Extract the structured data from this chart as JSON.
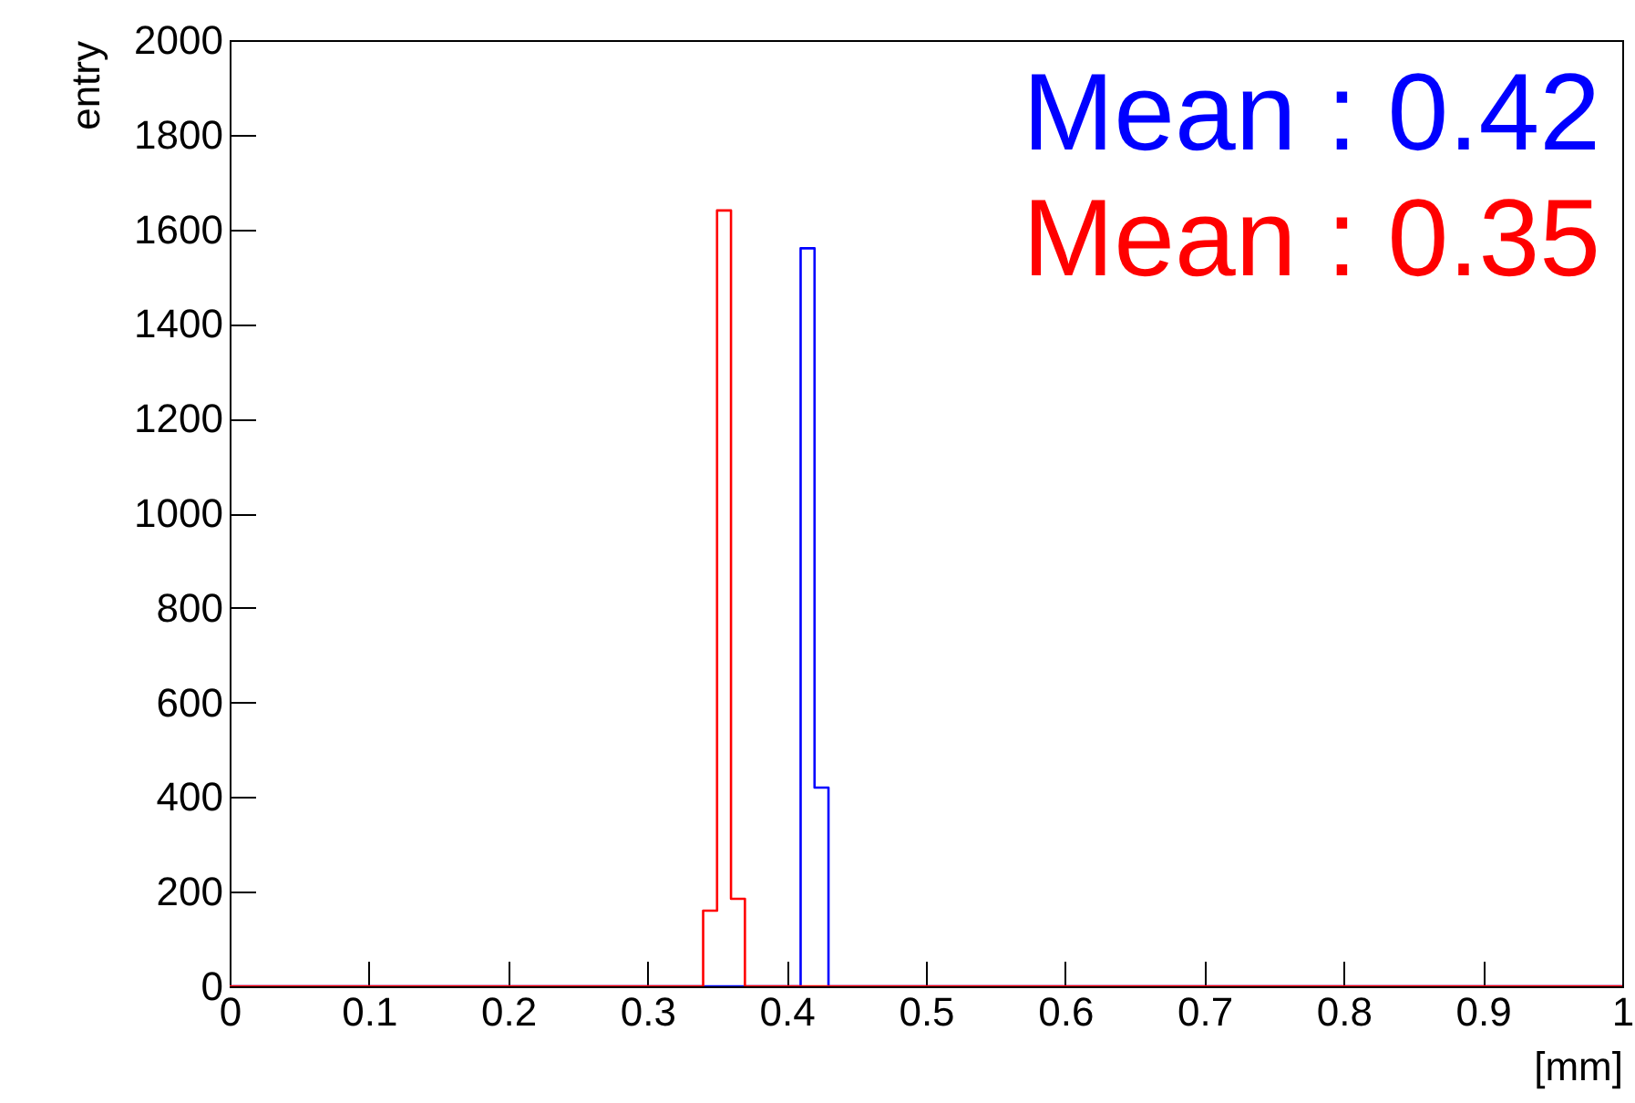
{
  "chart_data": {
    "type": "histogram",
    "xlabel": "[mm]",
    "ylabel": "entry",
    "bins": [
      0,
      0.01,
      0.02,
      0.03,
      0.04,
      0.05,
      0.06,
      0.07,
      0.08,
      0.09,
      0.1,
      0.11,
      0.12,
      0.13,
      0.14,
      0.15,
      0.16,
      0.17,
      0.18,
      0.19,
      0.2,
      0.21,
      0.22,
      0.23,
      0.24,
      0.25,
      0.26,
      0.27,
      0.28,
      0.29,
      0.3,
      0.31,
      0.32,
      0.33,
      0.34,
      0.35,
      0.36,
      0.37,
      0.38,
      0.39,
      0.4,
      0.41,
      0.42,
      0.43,
      0.44,
      0.45,
      0.46,
      0.47,
      0.48,
      0.49,
      0.5,
      0.51,
      0.52,
      0.53,
      0.54,
      0.55,
      0.56,
      0.57,
      0.58,
      0.59,
      0.6,
      0.61,
      0.62,
      0.63,
      0.64,
      0.65,
      0.66,
      0.67,
      0.68,
      0.69,
      0.7,
      0.71,
      0.72,
      0.73,
      0.74,
      0.75,
      0.76,
      0.77,
      0.78,
      0.79,
      0.8,
      0.81,
      0.82,
      0.83,
      0.84,
      0.85,
      0.86,
      0.87,
      0.88,
      0.89,
      0.9,
      0.91,
      0.92,
      0.93,
      0.94,
      0.95,
      0.96,
      0.97,
      0.98,
      0.99,
      1
    ],
    "series": [
      {
        "name": "Mean : 0.42",
        "color": "#0000ff",
        "values": [
          0,
          0,
          0,
          0,
          0,
          0,
          0,
          0,
          0,
          0,
          0,
          0,
          0,
          0,
          0,
          0,
          0,
          0,
          0,
          0,
          0,
          0,
          0,
          0,
          0,
          0,
          0,
          0,
          0,
          0,
          0,
          0,
          0,
          0,
          0,
          0,
          0,
          0,
          0,
          0,
          0,
          1560,
          420,
          0,
          0,
          0,
          0,
          0,
          0,
          0,
          0,
          0,
          0,
          0,
          0,
          0,
          0,
          0,
          0,
          0,
          0,
          0,
          0,
          0,
          0,
          0,
          0,
          0,
          0,
          0,
          0,
          0,
          0,
          0,
          0,
          0,
          0,
          0,
          0,
          0,
          0,
          0,
          0,
          0,
          0,
          0,
          0,
          0,
          0,
          0,
          0,
          0,
          0,
          0,
          0,
          0,
          0,
          0,
          0,
          0
        ]
      },
      {
        "name": "Mean : 0.35",
        "color": "#ff0000",
        "values": [
          0,
          0,
          0,
          0,
          0,
          0,
          0,
          0,
          0,
          0,
          0,
          0,
          0,
          0,
          0,
          0,
          0,
          0,
          0,
          0,
          0,
          0,
          0,
          0,
          0,
          0,
          0,
          0,
          0,
          0,
          0,
          0,
          0,
          0,
          160,
          1640,
          185,
          0,
          0,
          0,
          0,
          0,
          0,
          0,
          0,
          0,
          0,
          0,
          0,
          0,
          0,
          0,
          0,
          0,
          0,
          0,
          0,
          0,
          0,
          0,
          0,
          0,
          0,
          0,
          0,
          0,
          0,
          0,
          0,
          0,
          0,
          0,
          0,
          0,
          0,
          0,
          0,
          0,
          0,
          0,
          0,
          0,
          0,
          0,
          0,
          0,
          0,
          0,
          0,
          0,
          0,
          0,
          0,
          0,
          0,
          0,
          0,
          0,
          0,
          0
        ]
      }
    ],
    "xlim": [
      0,
      1
    ],
    "xticks": [
      0,
      0.1,
      0.2,
      0.3,
      0.4,
      0.5,
      0.6,
      0.7,
      0.8,
      0.9,
      1
    ],
    "ylim": [
      0,
      2000
    ],
    "yticks": [
      0,
      200,
      400,
      600,
      800,
      1000,
      1200,
      1400,
      1600,
      1800,
      2000
    ],
    "legend": "top right"
  }
}
